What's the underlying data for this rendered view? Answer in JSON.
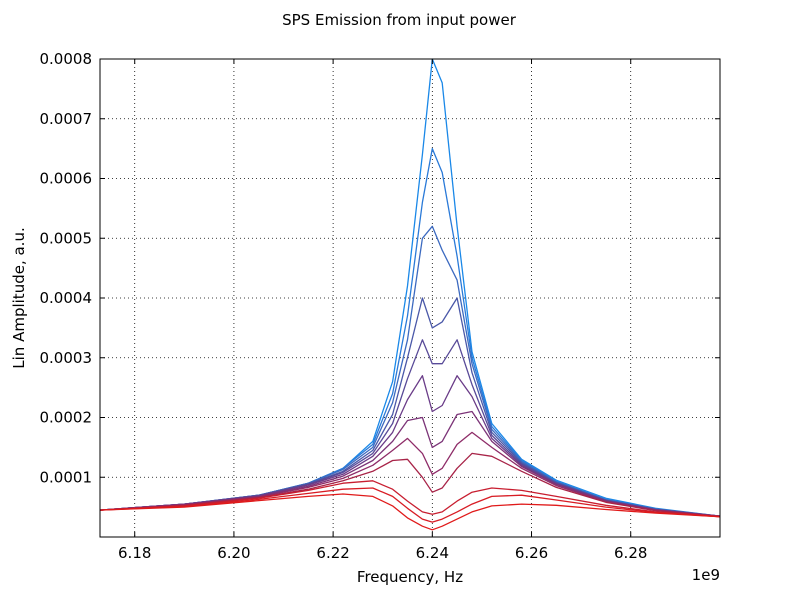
{
  "chart_data": {
    "type": "line",
    "title": "SPS Emission from input power",
    "xlabel": "Frequency, Hz",
    "ylabel": "Lin Amplitude, a.u.",
    "x_offset_label": "1e9",
    "xlim": [
      6.173,
      6.298
    ],
    "ylim": [
      0.0,
      0.0008
    ],
    "x_ticks": [
      6.18,
      6.2,
      6.22,
      6.24,
      6.26,
      6.28
    ],
    "x_tick_labels": [
      "6.18",
      "6.20",
      "6.22",
      "6.24",
      "6.26",
      "6.28"
    ],
    "y_ticks": [
      0.0001,
      0.0002,
      0.0003,
      0.0004,
      0.0005,
      0.0006,
      0.0007,
      0.0008
    ],
    "y_tick_labels": [
      "0.0001",
      "0.0002",
      "0.0003",
      "0.0004",
      "0.0005",
      "0.0006",
      "0.0007",
      "0.0008"
    ],
    "grid": true,
    "series": [
      {
        "color": "#1a88e8",
        "x": [
          6.173,
          6.19,
          6.205,
          6.215,
          6.222,
          6.228,
          6.232,
          6.235,
          6.238,
          6.24,
          6.242,
          6.245,
          6.248,
          6.252,
          6.258,
          6.265,
          6.275,
          6.285,
          6.298
        ],
        "y": [
          4.5e-05,
          5.5e-05,
          7e-05,
          9e-05,
          0.000115,
          0.00016,
          0.00026,
          0.00042,
          0.00064,
          0.0008,
          0.00076,
          0.00052,
          0.00031,
          0.00019,
          0.00013,
          9.5e-05,
          6.5e-05,
          4.8e-05,
          3.5e-05
        ]
      },
      {
        "color": "#2a7ad8",
        "x": [
          6.173,
          6.19,
          6.205,
          6.215,
          6.222,
          6.228,
          6.232,
          6.235,
          6.238,
          6.24,
          6.242,
          6.245,
          6.248,
          6.252,
          6.258,
          6.265,
          6.275,
          6.285,
          6.298
        ],
        "y": [
          4.5e-05,
          5.5e-05,
          7e-05,
          9e-05,
          0.000115,
          0.000155,
          0.00024,
          0.00037,
          0.00056,
          0.00065,
          0.00061,
          0.00047,
          0.0003,
          0.000185,
          0.000128,
          9.3e-05,
          6.3e-05,
          4.7e-05,
          3.5e-05
        ]
      },
      {
        "color": "#3c6ac0",
        "x": [
          6.173,
          6.19,
          6.205,
          6.215,
          6.222,
          6.228,
          6.232,
          6.235,
          6.238,
          6.24,
          6.242,
          6.245,
          6.248,
          6.252,
          6.258,
          6.265,
          6.275,
          6.285,
          6.298
        ],
        "y": [
          4.5e-05,
          5.5e-05,
          7e-05,
          9e-05,
          0.000113,
          0.00015,
          0.000225,
          0.00033,
          0.0005,
          0.00052,
          0.00048,
          0.00043,
          0.00029,
          0.00018,
          0.000126,
          9.2e-05,
          6.2e-05,
          4.7e-05,
          3.5e-05
        ]
      },
      {
        "color": "#4a58a8",
        "x": [
          6.173,
          6.19,
          6.205,
          6.215,
          6.222,
          6.228,
          6.232,
          6.235,
          6.238,
          6.24,
          6.242,
          6.245,
          6.248,
          6.252,
          6.258,
          6.265,
          6.275,
          6.285,
          6.298
        ],
        "y": [
          4.5e-05,
          5.5e-05,
          7e-05,
          8.9e-05,
          0.00011,
          0.000145,
          0.000205,
          0.0003,
          0.0004,
          0.00035,
          0.00036,
          0.0004,
          0.000275,
          0.000175,
          0.000124,
          9.1e-05,
          6.2e-05,
          4.6e-05,
          3.5e-05
        ]
      },
      {
        "color": "#584a98",
        "x": [
          6.173,
          6.19,
          6.205,
          6.215,
          6.222,
          6.228,
          6.232,
          6.235,
          6.238,
          6.24,
          6.242,
          6.245,
          6.248,
          6.252,
          6.258,
          6.265,
          6.275,
          6.285,
          6.298
        ],
        "y": [
          4.5e-05,
          5.5e-05,
          6.9e-05,
          8.8e-05,
          0.000108,
          0.00014,
          0.00019,
          0.000265,
          0.00033,
          0.00029,
          0.00029,
          0.00033,
          0.000255,
          0.00017,
          0.000122,
          9e-05,
          6.1e-05,
          4.6e-05,
          3.5e-05
        ]
      },
      {
        "color": "#6a3c88",
        "x": [
          6.173,
          6.19,
          6.205,
          6.215,
          6.222,
          6.228,
          6.232,
          6.235,
          6.238,
          6.24,
          6.242,
          6.245,
          6.248,
          6.252,
          6.258,
          6.265,
          6.275,
          6.285,
          6.298
        ],
        "y": [
          4.5e-05,
          5.5e-05,
          6.9e-05,
          8.7e-05,
          0.000105,
          0.000135,
          0.000175,
          0.00023,
          0.00027,
          0.00021,
          0.00022,
          0.00027,
          0.000235,
          0.000165,
          0.00012,
          8.9e-05,
          6.1e-05,
          4.6e-05,
          3.5e-05
        ]
      },
      {
        "color": "#7c3478",
        "x": [
          6.173,
          6.19,
          6.205,
          6.215,
          6.222,
          6.228,
          6.232,
          6.235,
          6.238,
          6.24,
          6.242,
          6.245,
          6.248,
          6.252,
          6.258,
          6.265,
          6.275,
          6.285,
          6.298
        ],
        "y": [
          4.5e-05,
          5.5e-05,
          6.8e-05,
          8.5e-05,
          0.000102,
          0.000128,
          0.00016,
          0.000195,
          0.0002,
          0.00015,
          0.00016,
          0.000205,
          0.00021,
          0.00016,
          0.000118,
          8.8e-05,
          6e-05,
          4.5e-05,
          3.5e-05
        ]
      },
      {
        "color": "#8e2c68",
        "x": [
          6.173,
          6.19,
          6.205,
          6.215,
          6.222,
          6.228,
          6.232,
          6.235,
          6.238,
          6.24,
          6.242,
          6.245,
          6.248,
          6.252,
          6.258,
          6.265,
          6.275,
          6.285,
          6.298
        ],
        "y": [
          4.5e-05,
          5.4e-05,
          6.7e-05,
          8.3e-05,
          9.8e-05,
          0.00012,
          0.000145,
          0.000165,
          0.00014,
          0.000105,
          0.000115,
          0.000155,
          0.000175,
          0.00015,
          0.000115,
          8.6e-05,
          5.9e-05,
          4.5e-05,
          3.5e-05
        ]
      },
      {
        "color": "#a82448",
        "x": [
          6.173,
          6.19,
          6.205,
          6.215,
          6.222,
          6.228,
          6.232,
          6.235,
          6.238,
          6.24,
          6.242,
          6.245,
          6.248,
          6.252,
          6.258,
          6.265,
          6.275,
          6.285,
          6.298
        ],
        "y": [
          4.5e-05,
          5.3e-05,
          6.6e-05,
          8e-05,
          9.4e-05,
          0.00011,
          0.000128,
          0.00013,
          0.0001,
          7.5e-05,
          8.2e-05,
          0.000115,
          0.00014,
          0.000135,
          0.00011,
          8.3e-05,
          5.8e-05,
          4.4e-05,
          3.4e-05
        ]
      },
      {
        "color": "#c81e30",
        "x": [
          6.173,
          6.19,
          6.205,
          6.215,
          6.222,
          6.228,
          6.232,
          6.235,
          6.238,
          6.24,
          6.242,
          6.245,
          6.248,
          6.252,
          6.258,
          6.265,
          6.275,
          6.285,
          6.298
        ],
        "y": [
          4.5e-05,
          5.2e-05,
          6.5e-05,
          7.8e-05,
          9e-05,
          9.4e-05,
          8e-05,
          6e-05,
          4.2e-05,
          3.8e-05,
          4.2e-05,
          6e-05,
          7.5e-05,
          8.2e-05,
          7.8e-05,
          6.8e-05,
          5.3e-05,
          4.2e-05,
          3.4e-05
        ]
      },
      {
        "color": "#d81c24",
        "x": [
          6.173,
          6.19,
          6.205,
          6.215,
          6.222,
          6.228,
          6.232,
          6.235,
          6.238,
          6.24,
          6.242,
          6.245,
          6.248,
          6.252,
          6.258,
          6.265,
          6.275,
          6.285,
          6.298
        ],
        "y": [
          4.5e-05,
          5.1e-05,
          6.3e-05,
          7.3e-05,
          8e-05,
          8.2e-05,
          6.8e-05,
          4.8e-05,
          3e-05,
          2.5e-05,
          3e-05,
          4.2e-05,
          5.5e-05,
          6.8e-05,
          7e-05,
          6.2e-05,
          5e-05,
          4.1e-05,
          3.4e-05
        ]
      },
      {
        "color": "#e01a1a",
        "x": [
          6.173,
          6.19,
          6.205,
          6.215,
          6.222,
          6.228,
          6.232,
          6.235,
          6.238,
          6.24,
          6.242,
          6.245,
          6.248,
          6.252,
          6.258,
          6.265,
          6.275,
          6.285,
          6.298
        ],
        "y": [
          4.5e-05,
          5e-05,
          6.1e-05,
          6.8e-05,
          7.2e-05,
          6.8e-05,
          5.2e-05,
          3.2e-05,
          1.8e-05,
          1.2e-05,
          1.8e-05,
          3e-05,
          4.2e-05,
          5.2e-05,
          5.5e-05,
          5.3e-05,
          4.6e-05,
          4e-05,
          3.4e-05
        ]
      }
    ]
  }
}
